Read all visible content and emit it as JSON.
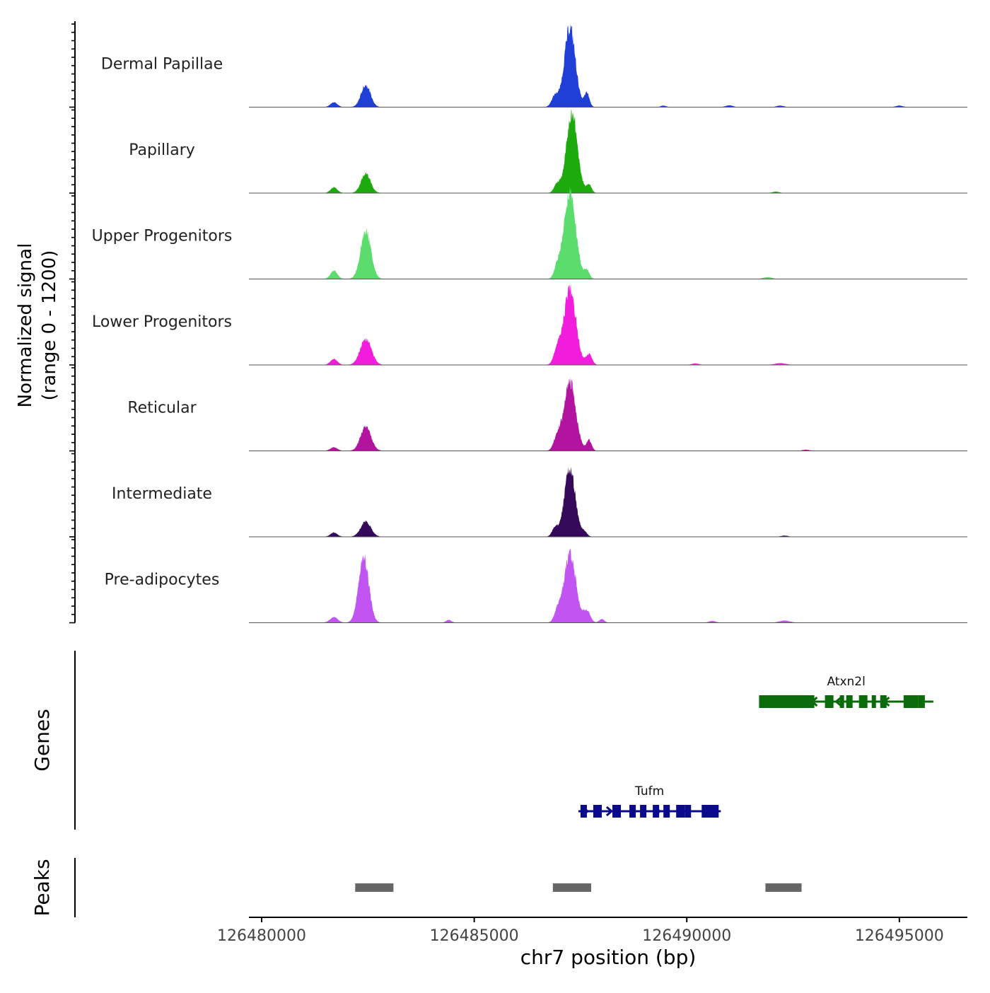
{
  "chart_data": {
    "type": "area",
    "genome_track": true,
    "x_axis": {
      "label": "chr7 position (bp)",
      "range": [
        126479700,
        126496600
      ],
      "ticks": [
        126480000,
        126485000,
        126490000,
        126495000
      ],
      "tick_labels": [
        "126480000",
        "126485000",
        "126490000",
        "126495000"
      ]
    },
    "signal_panel": {
      "ylabel_line1": "Normalized signal",
      "ylabel_line2": "(range 0 - 1200)",
      "y_range": [
        0,
        1200
      ],
      "tracks": [
        {
          "name": "Dermal Papillae",
          "color": "#1f3fd6",
          "peaks": [
            {
              "pos": 126481700,
              "h": 70,
              "w": 80
            },
            {
              "pos": 126482450,
              "h": 320,
              "w": 110
            },
            {
              "pos": 126486900,
              "h": 160,
              "w": 80
            },
            {
              "pos": 126487250,
              "h": 1150,
              "w": 130
            },
            {
              "pos": 126487650,
              "h": 200,
              "w": 60
            },
            {
              "pos": 126489450,
              "h": 20,
              "w": 60
            },
            {
              "pos": 126491000,
              "h": 25,
              "w": 80
            },
            {
              "pos": 126492200,
              "h": 20,
              "w": 80
            },
            {
              "pos": 126495000,
              "h": 20,
              "w": 80
            }
          ]
        },
        {
          "name": "Papillary",
          "color": "#1caa0c",
          "peaks": [
            {
              "pos": 126481700,
              "h": 80,
              "w": 80
            },
            {
              "pos": 126482450,
              "h": 280,
              "w": 110
            },
            {
              "pos": 126486950,
              "h": 130,
              "w": 70
            },
            {
              "pos": 126487300,
              "h": 1150,
              "w": 130
            },
            {
              "pos": 126487700,
              "h": 120,
              "w": 60
            },
            {
              "pos": 126492100,
              "h": 18,
              "w": 80
            }
          ]
        },
        {
          "name": "Upper Progenitors",
          "color": "#5cdc6c",
          "peaks": [
            {
              "pos": 126481700,
              "h": 120,
              "w": 80
            },
            {
              "pos": 126482450,
              "h": 700,
              "w": 120
            },
            {
              "pos": 126486950,
              "h": 150,
              "w": 70
            },
            {
              "pos": 126487250,
              "h": 1260,
              "w": 140
            },
            {
              "pos": 126487650,
              "h": 120,
              "w": 60
            },
            {
              "pos": 126491900,
              "h": 25,
              "w": 100
            }
          ]
        },
        {
          "name": "Lower Progenitors",
          "color": "#f21ddc",
          "peaks": [
            {
              "pos": 126481700,
              "h": 90,
              "w": 80
            },
            {
              "pos": 126482450,
              "h": 380,
              "w": 130
            },
            {
              "pos": 126486950,
              "h": 200,
              "w": 80
            },
            {
              "pos": 126487250,
              "h": 1100,
              "w": 140
            },
            {
              "pos": 126487700,
              "h": 150,
              "w": 70
            },
            {
              "pos": 126490200,
              "h": 20,
              "w": 80
            },
            {
              "pos": 126492200,
              "h": 25,
              "w": 120
            }
          ]
        },
        {
          "name": "Reticular",
          "color": "#b2149f",
          "peaks": [
            {
              "pos": 126481700,
              "h": 50,
              "w": 80
            },
            {
              "pos": 126482450,
              "h": 360,
              "w": 120
            },
            {
              "pos": 126486950,
              "h": 180,
              "w": 80
            },
            {
              "pos": 126487250,
              "h": 990,
              "w": 140
            },
            {
              "pos": 126487700,
              "h": 150,
              "w": 60
            },
            {
              "pos": 126492800,
              "h": 15,
              "w": 80
            }
          ]
        },
        {
          "name": "Intermediate",
          "color": "#360a5a",
          "peaks": [
            {
              "pos": 126481700,
              "h": 60,
              "w": 80
            },
            {
              "pos": 126482450,
              "h": 220,
              "w": 120
            },
            {
              "pos": 126486900,
              "h": 130,
              "w": 70
            },
            {
              "pos": 126487250,
              "h": 980,
              "w": 130
            },
            {
              "pos": 126487600,
              "h": 60,
              "w": 60
            },
            {
              "pos": 126492300,
              "h": 15,
              "w": 80
            }
          ]
        },
        {
          "name": "Pre-adipocytes",
          "color": "#c255f2",
          "peaks": [
            {
              "pos": 126481700,
              "h": 80,
              "w": 90
            },
            {
              "pos": 126482400,
              "h": 950,
              "w": 120
            },
            {
              "pos": 126486950,
              "h": 150,
              "w": 70
            },
            {
              "pos": 126487250,
              "h": 1000,
              "w": 140
            },
            {
              "pos": 126487650,
              "h": 170,
              "w": 80
            },
            {
              "pos": 126488000,
              "h": 50,
              "w": 60
            },
            {
              "pos": 126484400,
              "h": 40,
              "w": 60
            },
            {
              "pos": 126490600,
              "h": 25,
              "w": 80
            },
            {
              "pos": 126492300,
              "h": 30,
              "w": 120
            }
          ]
        }
      ]
    },
    "genes_panel": {
      "label": "Genes",
      "genes": [
        {
          "name": "Atxn2l",
          "color": "#0a6b0a",
          "strand": "-",
          "start": 126491700,
          "end": 126495800,
          "exons": [
            [
              126491700,
              126492300
            ],
            [
              126492300,
              126493000
            ],
            [
              126493250,
              126493450
            ],
            [
              126493600,
              126493700
            ],
            [
              126493750,
              126493900
            ],
            [
              126494050,
              126494250
            ],
            [
              126494350,
              126494450
            ],
            [
              126494550,
              126494700
            ],
            [
              126495100,
              126495450
            ],
            [
              126495450,
              126495600
            ]
          ],
          "row": 1
        },
        {
          "name": "Tufm",
          "color": "#0a0a8c",
          "strand": "+",
          "start": 126487450,
          "end": 126490800,
          "exons": [
            [
              126487500,
              126487650
            ],
            [
              126487800,
              126488000
            ],
            [
              126488250,
              126488450
            ],
            [
              126488650,
              126488800
            ],
            [
              126488900,
              126489050
            ],
            [
              126489200,
              126489350
            ],
            [
              126489450,
              126489600
            ],
            [
              126489750,
              126489950
            ],
            [
              126489950,
              126490100
            ],
            [
              126490350,
              126490750
            ]
          ],
          "row": 2
        }
      ]
    },
    "peaks_panel": {
      "label": "Peaks",
      "color": "#666666",
      "regions": [
        [
          126482200,
          126483100
        ],
        [
          126486850,
          126487750
        ],
        [
          126491850,
          126492700
        ]
      ]
    }
  }
}
